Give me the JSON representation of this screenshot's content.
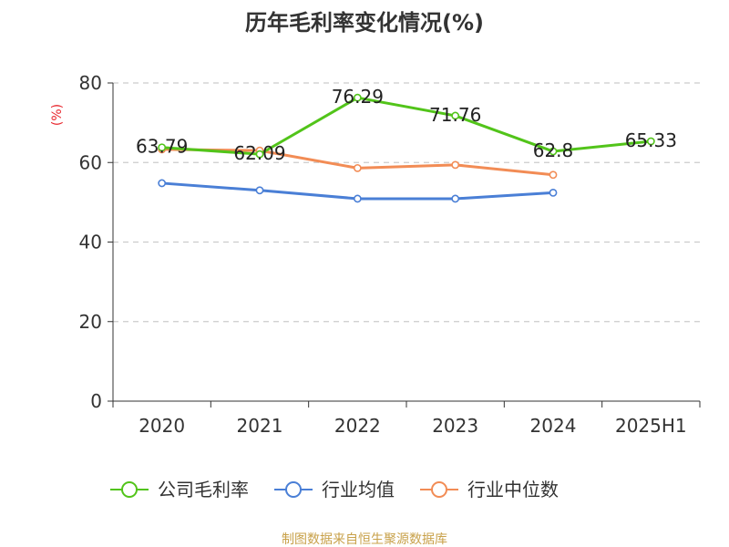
{
  "chart_data": {
    "type": "line",
    "title": "历年毛利率变化情况(%)",
    "ylabel": "(%)",
    "xlabel": "",
    "categories": [
      "2020",
      "2021",
      "2022",
      "2023",
      "2024",
      "2025H1"
    ],
    "ylim": [
      0,
      80
    ],
    "yticks": [
      0,
      20,
      40,
      60,
      80
    ],
    "grid": true,
    "legend_position": "bottom",
    "series": [
      {
        "name": "公司毛利率",
        "color": "#52c41a",
        "values": [
          63.79,
          62.09,
          76.29,
          71.76,
          62.8,
          65.33
        ],
        "labels": [
          "63.79",
          "62.09",
          "76.29",
          "71.76",
          "62.8",
          "65.33"
        ]
      },
      {
        "name": "行业均值",
        "color": "#4a7fd6",
        "values": [
          54.8,
          53.0,
          50.9,
          50.9,
          52.4,
          null
        ]
      },
      {
        "name": "行业中位数",
        "color": "#f28c55",
        "values": [
          63.3,
          63.0,
          58.6,
          59.4,
          56.9,
          null
        ]
      }
    ]
  },
  "source": "制图数据来自恒生聚源数据库",
  "colors": {
    "axis": "#333333",
    "grid": "#cccccc",
    "ylabel": "#e8262d",
    "source": "#c8a14a"
  }
}
